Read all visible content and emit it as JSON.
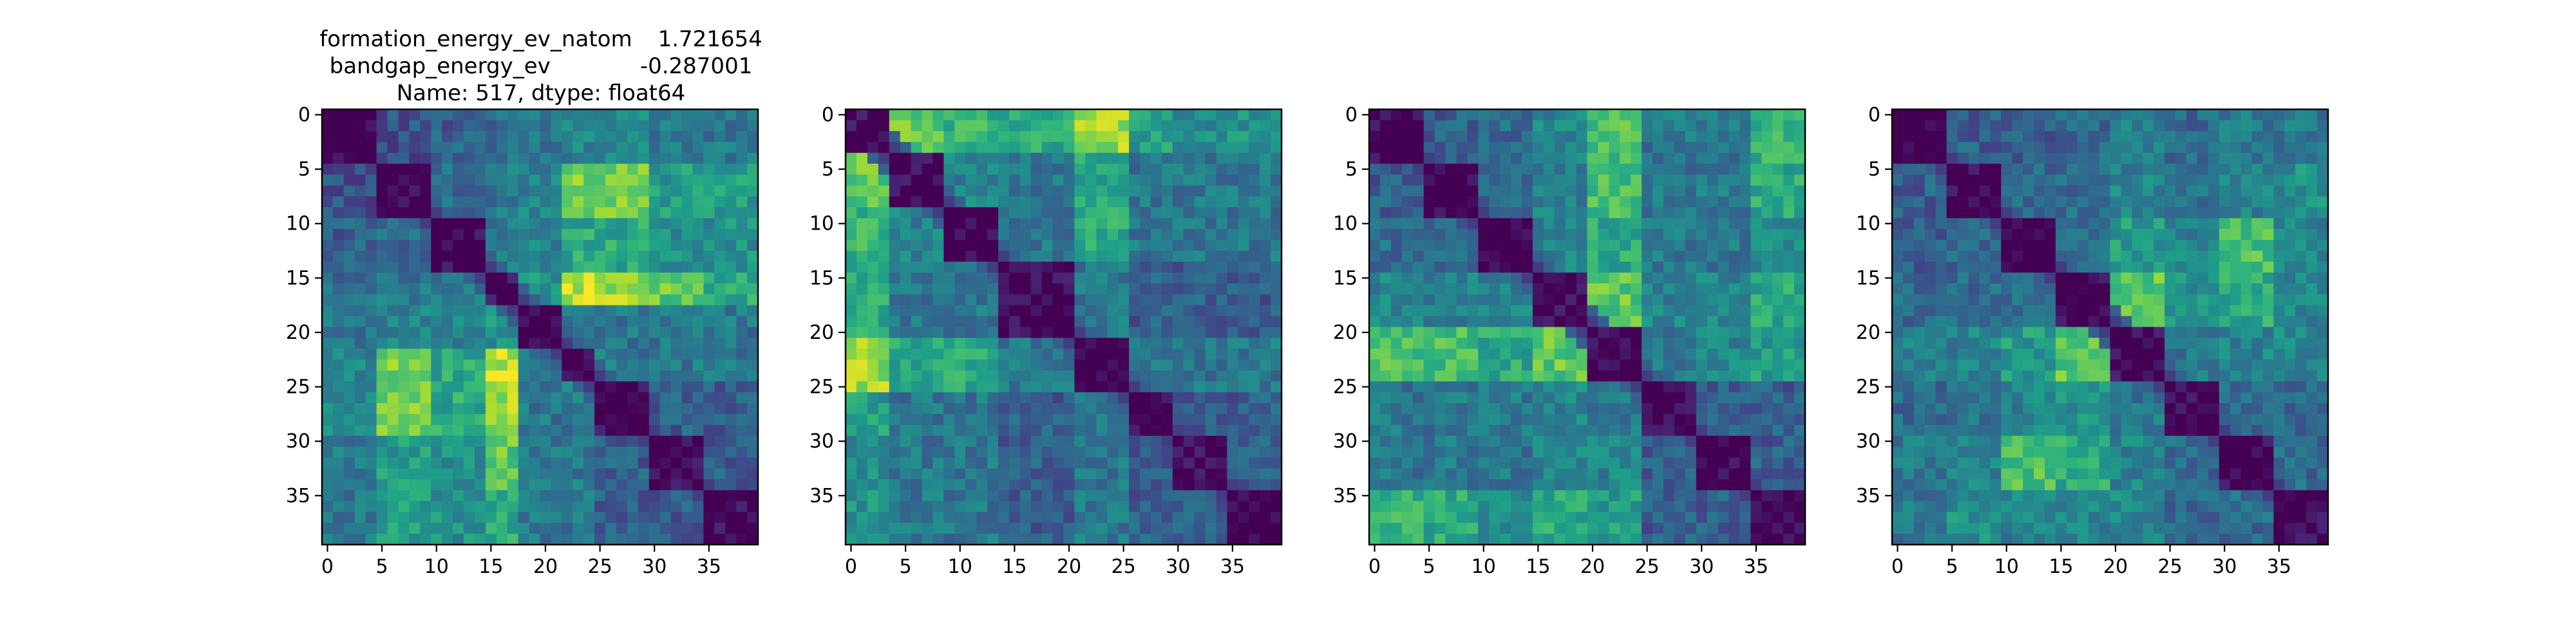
{
  "figure": {
    "title_lines": [
      {
        "label": "formation_energy_ev_natom",
        "value": "1.721654"
      },
      {
        "label": "bandgap_energy_ev",
        "value": "-0.287001"
      },
      {
        "label": "Name: 517, dtype: float64",
        "value": ""
      }
    ]
  },
  "colormap": "viridis",
  "chart_data": [
    {
      "type": "heatmap",
      "title": "",
      "xlabel": "",
      "ylabel": "",
      "rows": 40,
      "cols": 40,
      "xlim": [
        0,
        39
      ],
      "ylim": [
        39,
        0
      ],
      "x_ticks": [
        0,
        5,
        10,
        15,
        20,
        25,
        30,
        35
      ],
      "y_ticks": [
        0,
        5,
        10,
        15,
        20,
        25,
        30,
        35
      ],
      "value_range": [
        0,
        1
      ],
      "diagonal": 0,
      "groups": [
        [
          0,
          4
        ],
        [
          5,
          9
        ],
        [
          10,
          14
        ],
        [
          15,
          17
        ],
        [
          18,
          21
        ],
        [
          22,
          24
        ],
        [
          25,
          29
        ],
        [
          30,
          34
        ],
        [
          35,
          39
        ]
      ],
      "group_levels": [
        [
          0.0,
          0.25,
          0.3,
          0.35,
          0.4,
          0.45,
          0.45,
          0.4,
          0.4
        ],
        [
          0.25,
          0.0,
          0.35,
          0.4,
          0.45,
          0.8,
          0.8,
          0.55,
          0.55
        ],
        [
          0.3,
          0.35,
          0.0,
          0.4,
          0.45,
          0.6,
          0.6,
          0.5,
          0.5
        ],
        [
          0.35,
          0.4,
          0.4,
          0.0,
          0.5,
          0.9,
          0.85,
          0.75,
          0.6
        ],
        [
          0.4,
          0.45,
          0.45,
          0.5,
          0.0,
          0.4,
          0.4,
          0.4,
          0.4
        ],
        [
          0.45,
          0.8,
          0.6,
          0.9,
          0.4,
          0.0,
          0.4,
          0.4,
          0.4
        ],
        [
          0.45,
          0.8,
          0.6,
          0.85,
          0.4,
          0.4,
          0.0,
          0.3,
          0.3
        ],
        [
          0.4,
          0.55,
          0.5,
          0.75,
          0.4,
          0.4,
          0.3,
          0.0,
          0.3
        ],
        [
          0.4,
          0.55,
          0.5,
          0.6,
          0.4,
          0.4,
          0.3,
          0.3,
          0.0
        ]
      ]
    },
    {
      "type": "heatmap",
      "title": "",
      "xlabel": "",
      "ylabel": "",
      "rows": 40,
      "cols": 40,
      "xlim": [
        0,
        39
      ],
      "ylim": [
        39,
        0
      ],
      "x_ticks": [
        0,
        5,
        10,
        15,
        20,
        25,
        30,
        35
      ],
      "y_ticks": [
        0,
        5,
        10,
        15,
        20,
        25,
        30,
        35
      ],
      "value_range": [
        0,
        1
      ],
      "diagonal": 0,
      "groups": [
        [
          0,
          3
        ],
        [
          4,
          8
        ],
        [
          9,
          13
        ],
        [
          14,
          20
        ],
        [
          21,
          25
        ],
        [
          26,
          29
        ],
        [
          30,
          34
        ],
        [
          35,
          39
        ]
      ],
      "group_levels": [
        [
          0.0,
          0.75,
          0.65,
          0.6,
          0.85,
          0.55,
          0.5,
          0.5
        ],
        [
          0.75,
          0.0,
          0.45,
          0.4,
          0.6,
          0.4,
          0.4,
          0.4
        ],
        [
          0.65,
          0.45,
          0.0,
          0.4,
          0.6,
          0.4,
          0.4,
          0.4
        ],
        [
          0.6,
          0.4,
          0.4,
          0.0,
          0.4,
          0.3,
          0.3,
          0.3
        ],
        [
          0.85,
          0.6,
          0.6,
          0.4,
          0.0,
          0.4,
          0.4,
          0.4
        ],
        [
          0.55,
          0.4,
          0.4,
          0.3,
          0.4,
          0.0,
          0.3,
          0.3
        ],
        [
          0.5,
          0.4,
          0.4,
          0.3,
          0.4,
          0.3,
          0.0,
          0.3
        ],
        [
          0.5,
          0.4,
          0.4,
          0.3,
          0.4,
          0.3,
          0.3,
          0.0
        ]
      ]
    },
    {
      "type": "heatmap",
      "title": "",
      "xlabel": "",
      "ylabel": "",
      "rows": 40,
      "cols": 40,
      "xlim": [
        0,
        39
      ],
      "ylim": [
        39,
        0
      ],
      "x_ticks": [
        0,
        5,
        10,
        15,
        20,
        25,
        30,
        35
      ],
      "y_ticks": [
        0,
        5,
        10,
        15,
        20,
        25,
        30,
        35
      ],
      "value_range": [
        0,
        1
      ],
      "diagonal": 0,
      "groups": [
        [
          0,
          4
        ],
        [
          5,
          9
        ],
        [
          10,
          14
        ],
        [
          15,
          19
        ],
        [
          20,
          24
        ],
        [
          25,
          29
        ],
        [
          30,
          34
        ],
        [
          35,
          39
        ]
      ],
      "group_levels": [
        [
          0.0,
          0.3,
          0.35,
          0.45,
          0.7,
          0.4,
          0.4,
          0.65
        ],
        [
          0.3,
          0.0,
          0.35,
          0.45,
          0.7,
          0.4,
          0.4,
          0.6
        ],
        [
          0.35,
          0.35,
          0.0,
          0.45,
          0.6,
          0.4,
          0.4,
          0.5
        ],
        [
          0.45,
          0.45,
          0.45,
          0.0,
          0.75,
          0.45,
          0.45,
          0.6
        ],
        [
          0.7,
          0.7,
          0.6,
          0.75,
          0.0,
          0.4,
          0.45,
          0.55
        ],
        [
          0.4,
          0.4,
          0.4,
          0.45,
          0.4,
          0.0,
          0.3,
          0.3
        ],
        [
          0.4,
          0.4,
          0.4,
          0.45,
          0.45,
          0.3,
          0.0,
          0.3
        ],
        [
          0.65,
          0.6,
          0.5,
          0.6,
          0.55,
          0.3,
          0.3,
          0.0
        ]
      ]
    },
    {
      "type": "heatmap",
      "title": "",
      "xlabel": "",
      "ylabel": "",
      "rows": 40,
      "cols": 40,
      "xlim": [
        0,
        39
      ],
      "ylim": [
        39,
        0
      ],
      "x_ticks": [
        0,
        5,
        10,
        15,
        20,
        25,
        30,
        35
      ],
      "y_ticks": [
        0,
        5,
        10,
        15,
        20,
        25,
        30,
        35
      ],
      "value_range": [
        0,
        1
      ],
      "diagonal": 0,
      "groups": [
        [
          0,
          4
        ],
        [
          5,
          9
        ],
        [
          10,
          14
        ],
        [
          15,
          19
        ],
        [
          20,
          24
        ],
        [
          25,
          29
        ],
        [
          30,
          34
        ],
        [
          35,
          39
        ]
      ],
      "group_levels": [
        [
          0.0,
          0.3,
          0.3,
          0.35,
          0.45,
          0.35,
          0.4,
          0.4
        ],
        [
          0.3,
          0.0,
          0.35,
          0.35,
          0.45,
          0.4,
          0.45,
          0.5
        ],
        [
          0.3,
          0.35,
          0.0,
          0.35,
          0.55,
          0.45,
          0.7,
          0.45
        ],
        [
          0.35,
          0.35,
          0.35,
          0.0,
          0.75,
          0.5,
          0.6,
          0.45
        ],
        [
          0.45,
          0.45,
          0.55,
          0.75,
          0.0,
          0.4,
          0.45,
          0.45
        ],
        [
          0.35,
          0.4,
          0.45,
          0.5,
          0.4,
          0.0,
          0.35,
          0.35
        ],
        [
          0.4,
          0.45,
          0.7,
          0.6,
          0.45,
          0.35,
          0.0,
          0.35
        ],
        [
          0.4,
          0.5,
          0.45,
          0.45,
          0.45,
          0.35,
          0.35,
          0.0
        ]
      ]
    }
  ]
}
